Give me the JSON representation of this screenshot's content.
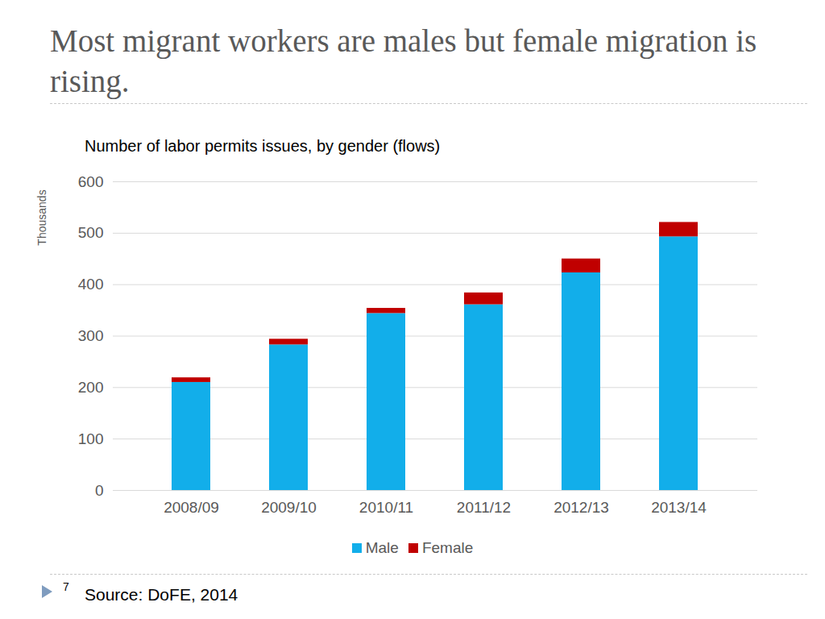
{
  "chart_data": {
    "type": "bar",
    "stacked": true,
    "title": "Most migrant workers are males but female migration is rising.",
    "subtitle": "Number of labor permits issues, by gender (flows)",
    "y_label": "Thousands",
    "source": "Source: DoFE, 2014",
    "categories": [
      "2008/09",
      "2009/10",
      "2010/11",
      "2011/12",
      "2012/13",
      "2013/14"
    ],
    "series": [
      {
        "name": "Male",
        "color": "#12aeea",
        "values": [
          210,
          283,
          344,
          361,
          423,
          493
        ]
      },
      {
        "name": "Female",
        "color": "#c00000",
        "values": [
          9,
          11,
          10,
          23,
          27,
          28
        ]
      }
    ],
    "ylim": [
      0,
      600
    ],
    "yticks": [
      0,
      100,
      200,
      300,
      400,
      500,
      600
    ],
    "grid": true,
    "legend": "bottom"
  },
  "page_number": 7
}
